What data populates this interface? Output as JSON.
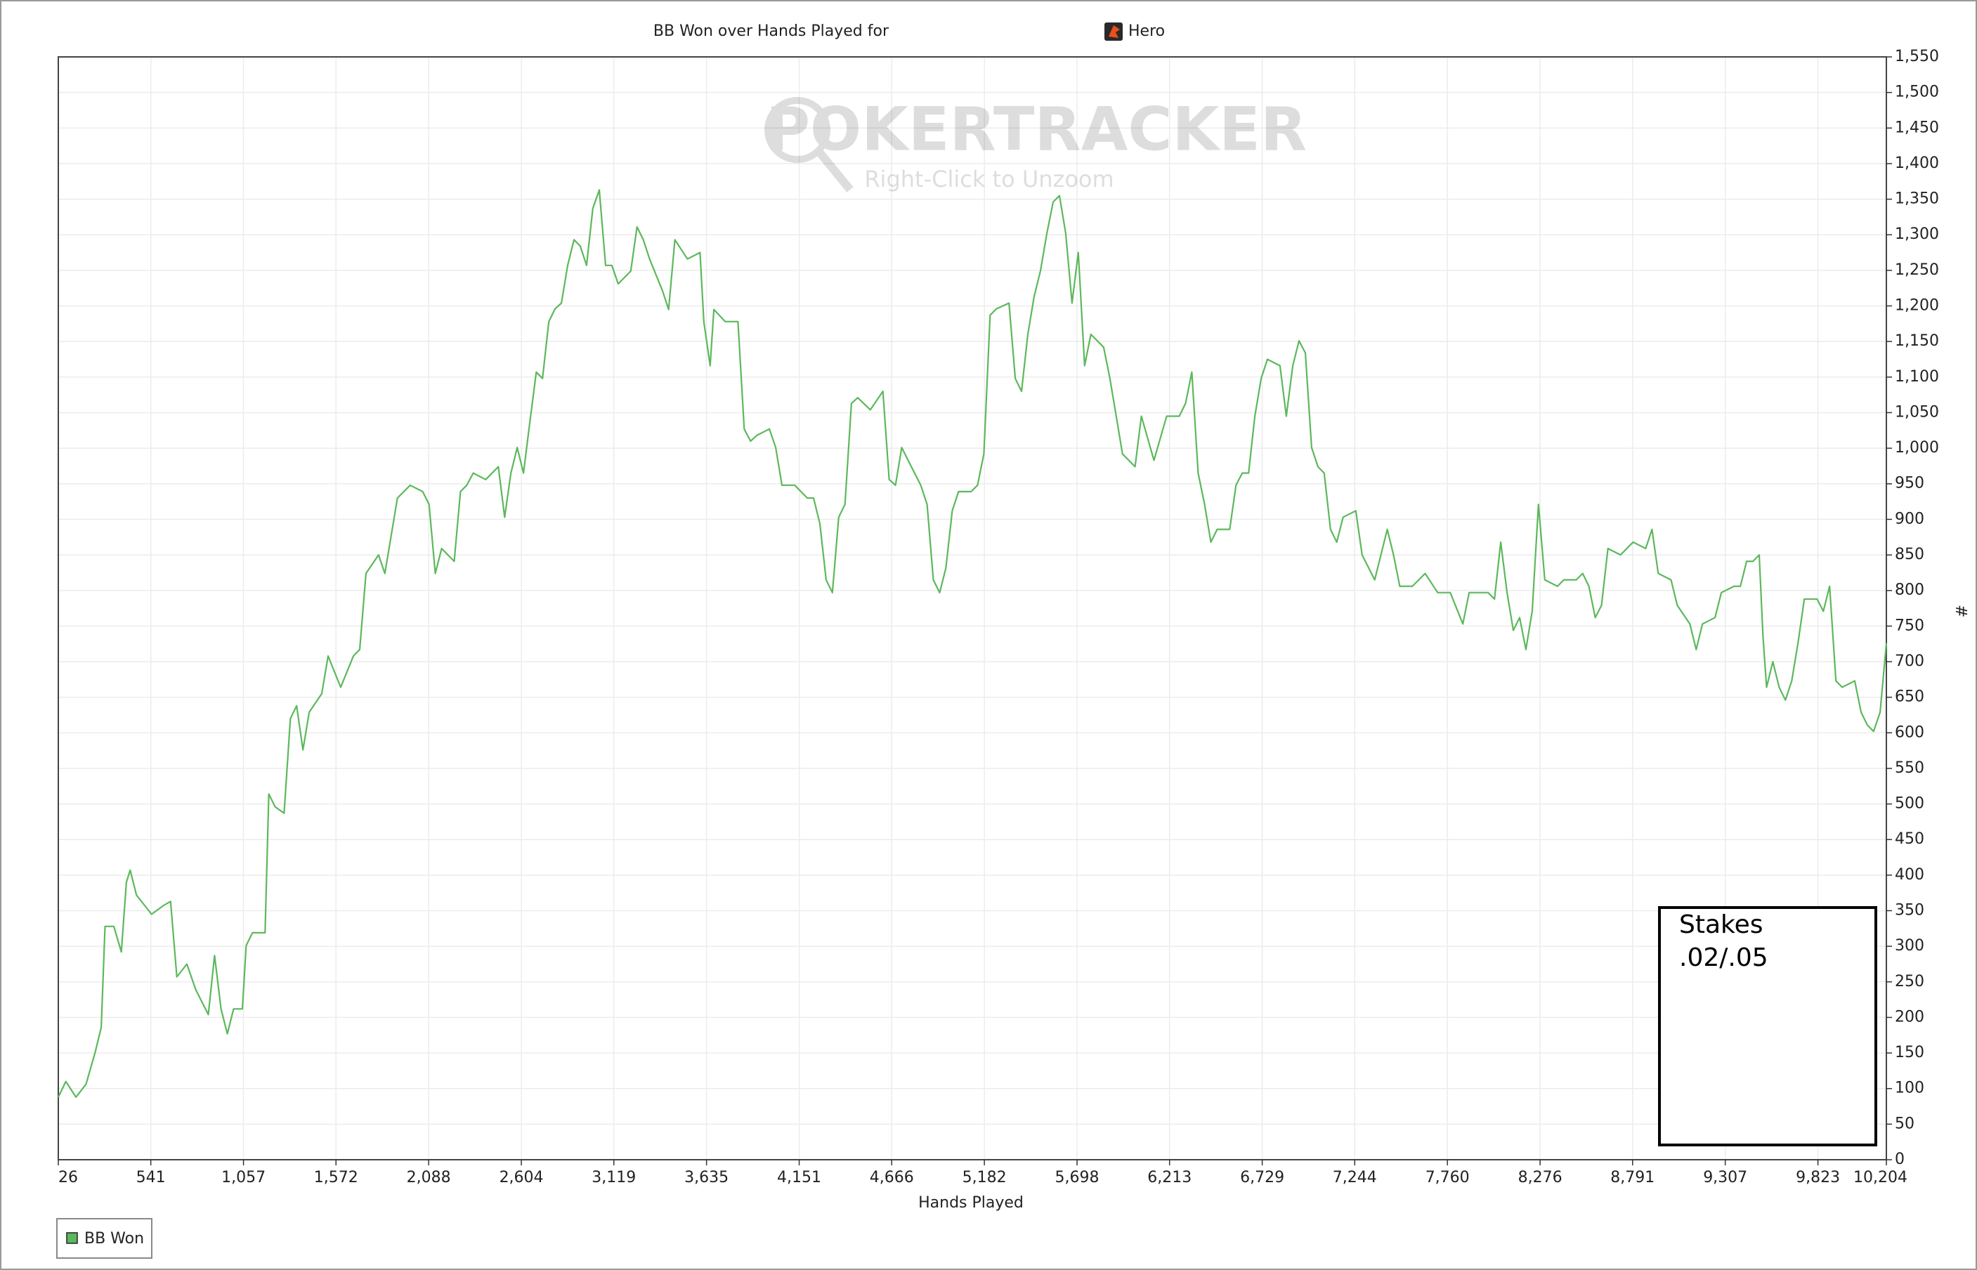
{
  "chart_data": {
    "type": "line",
    "title": "BB Won over Hands Played for",
    "player": "Hero",
    "x_label": "Hands Played",
    "y_label": "#",
    "watermark": {
      "brand": "POKERTRACKER",
      "hint": "Right-Click to Unzoom"
    },
    "annotation": {
      "lines": [
        "Stakes",
        ".02/.05"
      ]
    },
    "grid": true,
    "legend": "bottom-left",
    "xlim": [
      26,
      10204
    ],
    "ylim": [
      0,
      1550
    ],
    "xticks": [
      26,
      541,
      {
        "value": 1057,
        "label": "1,057"
      },
      {
        "value": 1572,
        "label": "1,572"
      },
      {
        "value": 2088,
        "label": "2,088"
      },
      {
        "value": 2604,
        "label": "2,604"
      },
      {
        "value": 3119,
        "label": "3,119"
      },
      {
        "value": 3635,
        "label": "3,635"
      },
      {
        "value": 4151,
        "label": "4,151"
      },
      {
        "value": 4666,
        "label": "4,666"
      },
      {
        "value": 5182,
        "label": "5,182"
      },
      {
        "value": 5698,
        "label": "5,698"
      },
      {
        "value": 6213,
        "label": "6,213"
      },
      {
        "value": 6729,
        "label": "6,729"
      },
      {
        "value": 7244,
        "label": "7,244"
      },
      {
        "value": 7760,
        "label": "7,760"
      },
      {
        "value": 8276,
        "label": "8,276"
      },
      {
        "value": 8791,
        "label": "8,791"
      },
      {
        "value": 9307,
        "label": "9,307"
      },
      {
        "value": 9823,
        "label": "9,823"
      },
      {
        "value": 10204,
        "label": "10,204"
      }
    ],
    "yticks": [
      0,
      50,
      100,
      150,
      200,
      250,
      300,
      350,
      400,
      450,
      500,
      550,
      600,
      650,
      700,
      750,
      800,
      850,
      900,
      950,
      {
        "value": 1000,
        "label": "1,000"
      },
      {
        "value": 1050,
        "label": "1,050"
      },
      {
        "value": 1100,
        "label": "1,100"
      },
      {
        "value": 1150,
        "label": "1,150"
      },
      {
        "value": 1200,
        "label": "1,200"
      },
      {
        "value": 1250,
        "label": "1,250"
      },
      {
        "value": 1300,
        "label": "1,300"
      },
      {
        "value": 1350,
        "label": "1,350"
      },
      {
        "value": 1400,
        "label": "1,400"
      },
      {
        "value": 1450,
        "label": "1,450"
      },
      {
        "value": 1500,
        "label": "1,500"
      },
      {
        "value": 1550,
        "label": "1,550"
      }
    ],
    "x": [
      26,
      68,
      124,
      180,
      230,
      265,
      286,
      335,
      377,
      405,
      426,
      461,
      545,
      616,
      651,
      686,
      742,
      791,
      861,
      896,
      932,
      967,
      1002,
      1051,
      1072,
      1107,
      1177,
      1198,
      1233,
      1283,
      1318,
      1353,
      1388,
      1423,
      1493,
      1528,
      1598,
      1669,
      1704,
      1739,
      1809,
      1844,
      1914,
      1985,
      2055,
      2090,
      2125,
      2160,
      2195,
      2230,
      2265,
      2300,
      2336,
      2406,
      2476,
      2511,
      2546,
      2581,
      2616,
      2651,
      2687,
      2722,
      2757,
      2792,
      2827,
      2862,
      2897,
      2932,
      2967,
      3002,
      3038,
      3073,
      3108,
      3143,
      3213,
      3248,
      3283,
      3318,
      3389,
      3424,
      3459,
      3529,
      3599,
      3620,
      3655,
      3676,
      3739,
      3810,
      3845,
      3880,
      3915,
      3985,
      4020,
      4055,
      4126,
      4196,
      4231,
      4266,
      4301,
      4336,
      4371,
      4406,
      4442,
      4477,
      4547,
      4617,
      4652,
      4687,
      4722,
      4757,
      4828,
      4863,
      4898,
      4933,
      4968,
      5003,
      5038,
      5108,
      5144,
      5179,
      5214,
      5249,
      5319,
      5354,
      5389,
      5424,
      5459,
      5494,
      5530,
      5565,
      5600,
      5635,
      5670,
      5705,
      5740,
      5775,
      5846,
      5881,
      5916,
      5951,
      6021,
      6056,
      6126,
      6197,
      6267,
      6302,
      6337,
      6372,
      6408,
      6443,
      6478,
      6548,
      6583,
      6618,
      6653,
      6688,
      6723,
      6758,
      6828,
      6863,
      6899,
      6934,
      6969,
      7004,
      7039,
      7074,
      7109,
      7144,
      7179,
      7250,
      7285,
      7355,
      7425,
      7460,
      7495,
      7565,
      7636,
      7706,
      7776,
      7846,
      7881,
      7952,
      7987,
      8022,
      8057,
      8092,
      8127,
      8162,
      8197,
      8232,
      8267,
      8302,
      8373,
      8408,
      8478,
      8513,
      8548,
      8583,
      8618,
      8654,
      8724,
      8794,
      8864,
      8899,
      8934,
      9005,
      9040,
      9110,
      9145,
      9180,
      9250,
      9285,
      9356,
      9391,
      9426,
      9461,
      9496,
      9517,
      9537,
      9572,
      9607,
      9642,
      9677,
      9712,
      9747,
      9818,
      9853,
      9888,
      9923,
      9958,
      10028,
      10063,
      10098,
      10133,
      10169,
      10204
    ],
    "series": [
      {
        "name": "BB Won",
        "color": "#5cb85c",
        "values": [
          88,
          110,
          88,
          106,
          150,
          186,
          328,
          328,
          292,
          390,
          407,
          372,
          345,
          358,
          363,
          257,
          275,
          239,
          204,
          287,
          212,
          177,
          212,
          212,
          301,
          319,
          319,
          514,
          496,
          487,
          620,
          638,
          576,
          629,
          655,
          708,
          664,
          708,
          717,
          824,
          850,
          824,
          930,
          948,
          939,
          921,
          824,
          859,
          850,
          841,
          939,
          948,
          965,
          956,
          974,
          903,
          965,
          1001,
          965,
          1036,
          1107,
          1098,
          1178,
          1196,
          1204,
          1257,
          1293,
          1284,
          1257,
          1337,
          1363,
          1257,
          1257,
          1231,
          1249,
          1311,
          1293,
          1266,
          1222,
          1195,
          1293,
          1266,
          1275,
          1178,
          1116,
          1195,
          1178,
          1178,
          1027,
          1010,
          1018,
          1027,
          1001,
          948,
          948,
          930,
          930,
          894,
          815,
          797,
          903,
          921,
          1063,
          1071,
          1054,
          1080,
          956,
          948,
          1001,
          983,
          948,
          921,
          815,
          797,
          832,
          912,
          939,
          939,
          948,
          992,
          1187,
          1196,
          1204,
          1098,
          1080,
          1160,
          1213,
          1249,
          1302,
          1346,
          1355,
          1302,
          1204,
          1275,
          1116,
          1160,
          1142,
          1098,
          1045,
          992,
          974,
          1045,
          983,
          1045,
          1045,
          1063,
          1107,
          965,
          921,
          868,
          886,
          886,
          948,
          965,
          965,
          1045,
          1098,
          1125,
          1116,
          1045,
          1116,
          1151,
          1134,
          1001,
          974,
          965,
          886,
          868,
          903,
          912,
          850,
          815,
          886,
          850,
          806,
          806,
          824,
          797,
          797,
          753,
          797,
          797,
          797,
          788,
          868,
          797,
          744,
          762,
          717,
          771,
          921,
          815,
          806,
          815,
          815,
          824,
          806,
          762,
          779,
          859,
          850,
          868,
          859,
          886,
          824,
          815,
          779,
          753,
          717,
          753,
          762,
          797,
          806,
          806,
          841,
          841,
          850,
          735,
          664,
          700,
          664,
          646,
          673,
          726,
          788,
          788,
          771,
          806,
          673,
          664,
          673,
          629,
          611,
          602,
          629,
          726
        ]
      }
    ]
  }
}
